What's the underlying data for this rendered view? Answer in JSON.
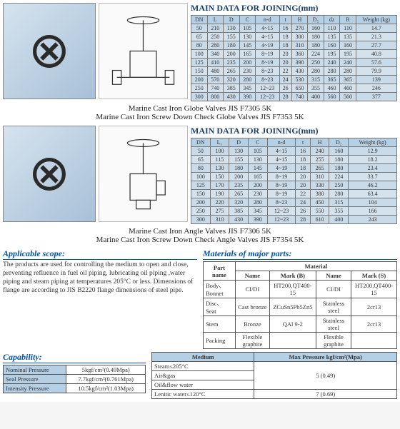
{
  "section1": {
    "heading": "MAIN DATA FOR JOINING(mm)",
    "headers": [
      "DN",
      "L",
      "D",
      "C",
      "n-d",
      "t",
      "H",
      "D₂",
      "dz",
      "R",
      "Weight (kg)"
    ],
    "rows": [
      [
        "50",
        "210",
        "130",
        "105",
        "4~15",
        "16",
        "270",
        "160",
        "110",
        "110",
        "14.7"
      ],
      [
        "65",
        "250",
        "155",
        "130",
        "4~15",
        "18",
        "300",
        "180",
        "135",
        "135",
        "21.3"
      ],
      [
        "80",
        "280",
        "180",
        "145",
        "4~19",
        "18",
        "310",
        "180",
        "160",
        "160",
        "27.7"
      ],
      [
        "100",
        "340",
        "200",
        "165",
        "8~19",
        "20",
        "360",
        "224",
        "195",
        "195",
        "40.8"
      ],
      [
        "125",
        "410",
        "235",
        "200",
        "8~19",
        "20",
        "390",
        "250",
        "240",
        "240",
        "57.6"
      ],
      [
        "150",
        "480",
        "265",
        "230",
        "8~23",
        "22",
        "430",
        "280",
        "280",
        "280",
        "79.9"
      ],
      [
        "200",
        "570",
        "320",
        "280",
        "8~23",
        "24",
        "530",
        "315",
        "365",
        "365",
        "139"
      ],
      [
        "250",
        "740",
        "385",
        "345",
        "12~23",
        "26",
        "650",
        "355",
        "460",
        "460",
        "246"
      ],
      [
        "300",
        "800",
        "430",
        "390",
        "12~23",
        "28",
        "740",
        "400",
        "560",
        "560",
        "377"
      ]
    ],
    "caption1": "Marine Cast Iron Globe Valves JIS F7305 5K",
    "caption2": "Marine Cast Iron Screw Down Check Globe Valves JIS F7353 5K"
  },
  "section2": {
    "heading": "MAIN DATA FOR JOINING(mm)",
    "headers": [
      "DN",
      "L₁",
      "D",
      "C",
      "n-d",
      "t",
      "H",
      "D₂",
      "Weight (kg)"
    ],
    "rows": [
      [
        "50",
        "100",
        "130",
        "105",
        "4~15",
        "16",
        "240",
        "160",
        "12.9"
      ],
      [
        "65",
        "115",
        "155",
        "130",
        "4~15",
        "18",
        "255",
        "180",
        "18.2"
      ],
      [
        "80",
        "130",
        "180",
        "145",
        "4~19",
        "18",
        "265",
        "180",
        "23.4"
      ],
      [
        "100",
        "150",
        "200",
        "165",
        "8~19",
        "20",
        "310",
        "224",
        "33.7"
      ],
      [
        "125",
        "170",
        "235",
        "200",
        "8~19",
        "20",
        "330",
        "250",
        "46.2"
      ],
      [
        "150",
        "190",
        "265",
        "230",
        "8~19",
        "22",
        "380",
        "280",
        "63.4"
      ],
      [
        "200",
        "220",
        "320",
        "280",
        "8~23",
        "24",
        "450",
        "315",
        "104"
      ],
      [
        "250",
        "275",
        "385",
        "345",
        "12~23",
        "26",
        "550",
        "355",
        "166"
      ],
      [
        "300",
        "310",
        "430",
        "390",
        "12~23",
        "28",
        "610",
        "400",
        "243"
      ]
    ],
    "caption1": "Marine Cast Iron Angle Valves JIS F7306 5K",
    "caption2": "Marine Cast Iron Screw Down Check Angle Valves JIS F7354 5K"
  },
  "scope": {
    "title": "Applicable scope:",
    "text": "The products are used for controlling the medium to open and close, preventing refluence in fuel oil piping, lubricating oil piping ,water piping and steam piping at temperatures 205°C or less. Dimensions of flange are according to JIS B2220 flange dimensions of steel pipe."
  },
  "materials": {
    "title": "Materials of major parts:",
    "header_main": "Part name",
    "header_mat": "Material",
    "sub_headers": [
      "Name",
      "Mark (B)",
      "Name",
      "Mark (S)"
    ],
    "rows": [
      [
        "Body、Bonnet",
        "CI/DI",
        "HT200,QT400-15",
        "CI/DI",
        "HT200,QT400-15"
      ],
      [
        "Disc、Seat",
        "Cast bronze",
        "ZCuSn5Pb5Zn5",
        "Stainless steel",
        "2cr13"
      ],
      [
        "Stem",
        "Bronze",
        "QAl 9-2",
        "Stainless steel",
        "2cr13"
      ],
      [
        "Packing",
        "Flexible graphite",
        "",
        "Flexible graphite",
        ""
      ]
    ]
  },
  "capability": {
    "title": "Capability:",
    "rows": [
      [
        "Nominal Pressure",
        "5kgf/cm²(0.49Mpa)"
      ],
      [
        "Seal Pressure",
        "7.7kgf/cm²(0.761Mpa)"
      ],
      [
        "Intensity Pressure",
        "10.5kgf/cm²(1.03Mpa)"
      ]
    ]
  },
  "medium": {
    "headers": [
      "Medium",
      "Max Pressure kgf/cm²(Mpa)"
    ],
    "rows": [
      [
        "Steam≤205°C",
        ""
      ],
      [
        "Air&gas",
        "5 (0.49)"
      ],
      [
        "Oil&flow water",
        ""
      ],
      [
        "Lenitic water≤120°C",
        "7 (0.69)"
      ]
    ]
  }
}
